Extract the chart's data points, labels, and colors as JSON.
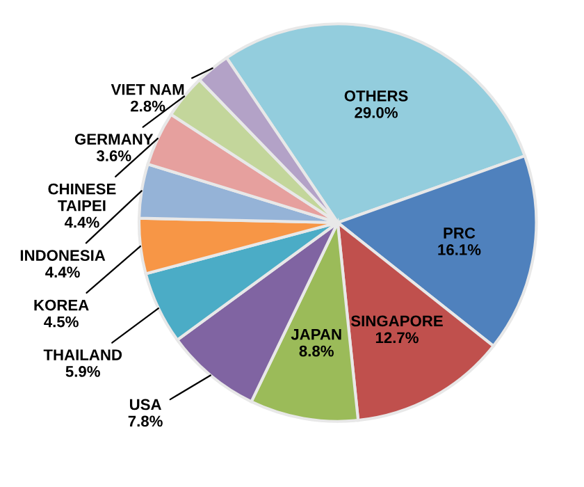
{
  "chart_data": {
    "type": "pie",
    "categories": [
      "OTHERS",
      "PRC",
      "SINGAPORE",
      "JAPAN",
      "USA",
      "THAILAND",
      "KOREA",
      "INDONESIA",
      "CHINESE TAIPEI",
      "GERMANY",
      "VIET NAM"
    ],
    "values": [
      29.0,
      16.1,
      12.7,
      8.8,
      7.8,
      5.9,
      4.5,
      4.4,
      4.4,
      3.6,
      2.8
    ],
    "colors": [
      "#93cddd",
      "#4f81bd",
      "#c0504d",
      "#9bbb59",
      "#8064a2",
      "#4bacc6",
      "#f79646",
      "#95b3d7",
      "#e6a09e",
      "#c3d69b",
      "#b3a2c7"
    ],
    "value_labels": [
      "29.0%",
      "16.1%",
      "12.7%",
      "8.8%",
      "7.8%",
      "5.9%",
      "4.5%",
      "4.4%",
      "4.4%",
      "3.6%",
      "2.8%"
    ],
    "legend": false
  }
}
